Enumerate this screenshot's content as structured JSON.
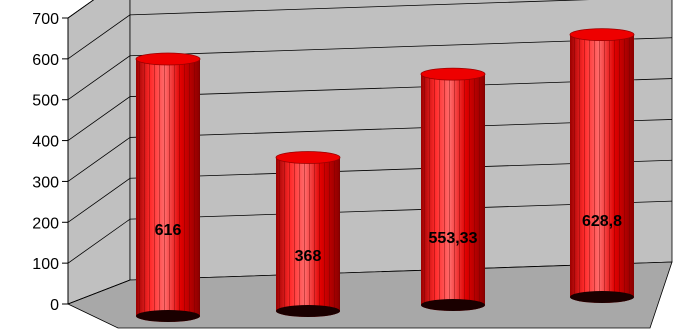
{
  "chart_data": {
    "type": "bar",
    "style": "3d-cylinder",
    "categories": [
      "",
      "",
      "",
      ""
    ],
    "values": [
      616,
      368,
      553.33,
      628.8
    ],
    "data_labels": [
      "616",
      "368",
      "553,33",
      "628,8"
    ],
    "y_ticks": [
      "0",
      "100",
      "200",
      "300",
      "400",
      "500",
      "600",
      "700"
    ],
    "ylim": [
      0,
      700
    ],
    "grid": true,
    "legend": "none",
    "title": "",
    "xlabel": "",
    "ylabel": "",
    "colors": {
      "bar": "#ff0000",
      "bar_dark": "#9a0000",
      "bar_light": "#ff5050",
      "bar_top": "#ee0000",
      "bar_base": "#1a0000",
      "wall": "#c0c0c0",
      "floor": "#a8a8a8",
      "grid": "#000000"
    }
  }
}
